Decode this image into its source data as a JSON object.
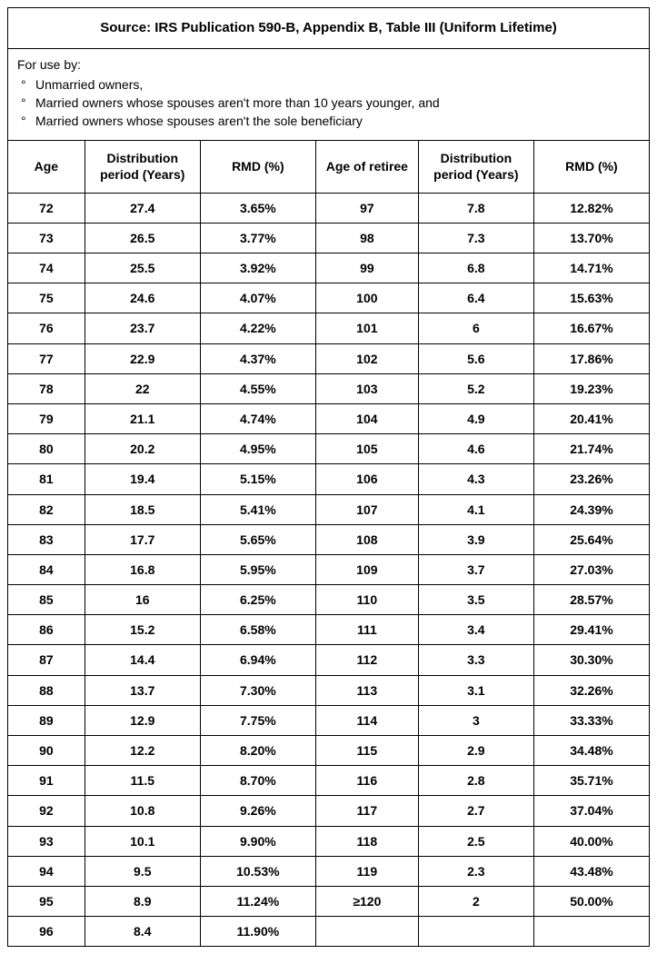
{
  "title": "Source: IRS Publication 590-B, Appendix B, Table III (Uniform Lifetime)",
  "usage": {
    "lead": "For use by:",
    "items": [
      "Unmarried owners,",
      "Married owners whose spouses aren't more than 10 years younger, and",
      "Married owners whose spouses aren't the sole beneficiary"
    ]
  },
  "headers": {
    "age": "Age",
    "dist": "Distribution period (Years)",
    "rmd": "RMD (%)",
    "age2": "Age of retiree",
    "dist2": "Distribution period (Years)",
    "rmd2": "RMD (%)"
  },
  "rows": [
    {
      "a": "72",
      "d": "27.4",
      "r": "3.65%",
      "a2": "97",
      "d2": "7.8",
      "r2": "12.82%"
    },
    {
      "a": "73",
      "d": "26.5",
      "r": "3.77%",
      "a2": "98",
      "d2": "7.3",
      "r2": "13.70%"
    },
    {
      "a": "74",
      "d": "25.5",
      "r": "3.92%",
      "a2": "99",
      "d2": "6.8",
      "r2": "14.71%"
    },
    {
      "a": "75",
      "d": "24.6",
      "r": "4.07%",
      "a2": "100",
      "d2": "6.4",
      "r2": "15.63%"
    },
    {
      "a": "76",
      "d": "23.7",
      "r": "4.22%",
      "a2": "101",
      "d2": "6",
      "r2": "16.67%"
    },
    {
      "a": "77",
      "d": "22.9",
      "r": "4.37%",
      "a2": "102",
      "d2": "5.6",
      "r2": "17.86%"
    },
    {
      "a": "78",
      "d": "22",
      "r": "4.55%",
      "a2": "103",
      "d2": "5.2",
      "r2": "19.23%"
    },
    {
      "a": "79",
      "d": "21.1",
      "r": "4.74%",
      "a2": "104",
      "d2": "4.9",
      "r2": "20.41%"
    },
    {
      "a": "80",
      "d": "20.2",
      "r": "4.95%",
      "a2": "105",
      "d2": "4.6",
      "r2": "21.74%"
    },
    {
      "a": "81",
      "d": "19.4",
      "r": "5.15%",
      "a2": "106",
      "d2": "4.3",
      "r2": "23.26%"
    },
    {
      "a": "82",
      "d": "18.5",
      "r": "5.41%",
      "a2": "107",
      "d2": "4.1",
      "r2": "24.39%"
    },
    {
      "a": "83",
      "d": "17.7",
      "r": "5.65%",
      "a2": "108",
      "d2": "3.9",
      "r2": "25.64%"
    },
    {
      "a": "84",
      "d": "16.8",
      "r": "5.95%",
      "a2": "109",
      "d2": "3.7",
      "r2": "27.03%"
    },
    {
      "a": "85",
      "d": "16",
      "r": "6.25%",
      "a2": "110",
      "d2": "3.5",
      "r2": "28.57%"
    },
    {
      "a": "86",
      "d": "15.2",
      "r": "6.58%",
      "a2": "111",
      "d2": "3.4",
      "r2": "29.41%"
    },
    {
      "a": "87",
      "d": "14.4",
      "r": "6.94%",
      "a2": "112",
      "d2": "3.3",
      "r2": "30.30%"
    },
    {
      "a": "88",
      "d": "13.7",
      "r": "7.30%",
      "a2": "113",
      "d2": "3.1",
      "r2": "32.26%"
    },
    {
      "a": "89",
      "d": "12.9",
      "r": "7.75%",
      "a2": "114",
      "d2": "3",
      "r2": "33.33%"
    },
    {
      "a": "90",
      "d": "12.2",
      "r": "8.20%",
      "a2": "115",
      "d2": "2.9",
      "r2": "34.48%"
    },
    {
      "a": "91",
      "d": "11.5",
      "r": "8.70%",
      "a2": "116",
      "d2": "2.8",
      "r2": "35.71%"
    },
    {
      "a": "92",
      "d": "10.8",
      "r": "9.26%",
      "a2": "117",
      "d2": "2.7",
      "r2": "37.04%"
    },
    {
      "a": "93",
      "d": "10.1",
      "r": "9.90%",
      "a2": "118",
      "d2": "2.5",
      "r2": "40.00%"
    },
    {
      "a": "94",
      "d": "9.5",
      "r": "10.53%",
      "a2": "119",
      "d2": "2.3",
      "r2": "43.48%"
    },
    {
      "a": "95",
      "d": "8.9",
      "r": "11.24%",
      "a2": "≥120",
      "d2": "2",
      "r2": "50.00%"
    },
    {
      "a": "96",
      "d": "8.4",
      "r": "11.90%",
      "a2": "",
      "d2": "",
      "r2": ""
    }
  ],
  "style": {
    "border_color": "#000000",
    "background": "#ffffff",
    "text_color": "#000000",
    "font_family": "Arial, Helvetica, sans-serif",
    "title_fontsize": 15,
    "cell_fontsize": 14,
    "col_widths_pct": [
      12,
      18,
      18,
      16,
      18,
      18
    ]
  }
}
